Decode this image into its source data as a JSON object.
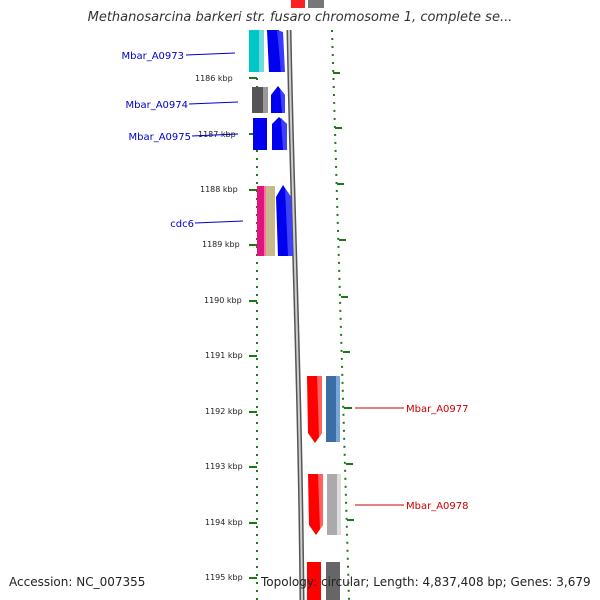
{
  "title": "Methanosarcina barkeri str. fusaro chromosome 1, complete se...",
  "accession": "Accession: NC_007355",
  "topology": "Topology: circular; Length: 4,837,408 bp; Genes: 3,679",
  "colors": {
    "forward_label": "#0000cc",
    "reverse_label": "#cc0000",
    "ruler_ticks": "#1a7a1a",
    "backbone": "#888888"
  },
  "ruler": {
    "unit": "kbp",
    "ticks": [
      {
        "label": "1186 kbp"
      },
      {
        "label": "1187 kbp"
      },
      {
        "label": "1188 kbp"
      },
      {
        "label": "1189 kbp"
      },
      {
        "label": "1190 kbp"
      },
      {
        "label": "1191 kbp"
      },
      {
        "label": "1192 kbp"
      },
      {
        "label": "1193 kbp"
      },
      {
        "label": "1194 kbp"
      },
      {
        "label": "1195 kbp"
      }
    ]
  },
  "genes": [
    {
      "name": "Mbar_A0973",
      "strand": "forward",
      "color": "#0000cc"
    },
    {
      "name": "Mbar_A0974",
      "strand": "forward",
      "color": "#0000cc"
    },
    {
      "name": "Mbar_A0975",
      "strand": "forward",
      "color": "#0000cc"
    },
    {
      "name": "cdc6",
      "strand": "forward",
      "color": "#0000cc"
    },
    {
      "name": "Mbar_A0977",
      "strand": "reverse",
      "color": "#cc0000"
    },
    {
      "name": "Mbar_A0978",
      "strand": "reverse",
      "color": "#cc0000"
    }
  ]
}
